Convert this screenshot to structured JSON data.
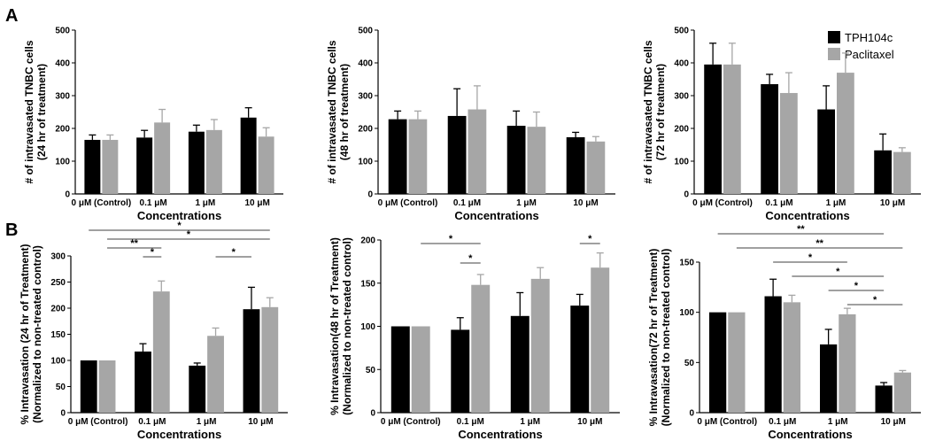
{
  "figure": {
    "panel_labels": [
      "A",
      "B"
    ],
    "legend": [
      {
        "name": "TPH104c",
        "color": "#000000"
      },
      {
        "name": "Paclitaxel",
        "color": "#a6a6a6"
      }
    ]
  },
  "chart_data": [
    {
      "type": "bar",
      "row": "A",
      "categories": [
        "0 μM (Control)",
        "0.1 μM",
        "1 μM",
        "10 μM"
      ],
      "xlabel": "Concentrations",
      "ylabel": [
        "# of intravasated TNBC cells",
        "(24 hr of treatment)"
      ],
      "ylim": [
        0,
        500
      ],
      "yticks": [
        0,
        100,
        200,
        300,
        400,
        500
      ],
      "series": [
        {
          "name": "TPH104c",
          "values": [
            165,
            172,
            190,
            233
          ],
          "errors": [
            15,
            22,
            20,
            30
          ]
        },
        {
          "name": "Paclitaxel",
          "values": [
            165,
            218,
            195,
            175
          ],
          "errors": [
            15,
            40,
            32,
            27
          ]
        }
      ],
      "significance": []
    },
    {
      "type": "bar",
      "row": "A",
      "categories": [
        "0 μM (Control)",
        "0.1 μM",
        "1 μM",
        "10 μM"
      ],
      "xlabel": "Concentrations",
      "ylabel": [
        "# of intravasated TNBC cells",
        "(48 hr of treatment)"
      ],
      "ylim": [
        0,
        500
      ],
      "yticks": [
        0,
        100,
        200,
        300,
        400,
        500
      ],
      "series": [
        {
          "name": "TPH104c",
          "values": [
            228,
            238,
            208,
            173
          ],
          "errors": [
            25,
            83,
            45,
            15
          ]
        },
        {
          "name": "Paclitaxel",
          "values": [
            228,
            258,
            205,
            160
          ],
          "errors": [
            25,
            72,
            45,
            15
          ]
        }
      ],
      "significance": []
    },
    {
      "type": "bar",
      "row": "A",
      "categories": [
        "0 μM (Control)",
        "0.1 μM",
        "1 μM",
        "10 μM"
      ],
      "xlabel": "Concentrations",
      "ylabel": [
        "# of intravasated TNBC cells",
        "(72 hr of treatment)"
      ],
      "ylim": [
        0,
        500
      ],
      "yticks": [
        0,
        100,
        200,
        300,
        400,
        500
      ],
      "series": [
        {
          "name": "TPH104c",
          "values": [
            395,
            335,
            258,
            133
          ],
          "errors": [
            65,
            30,
            72,
            50
          ]
        },
        {
          "name": "Paclitaxel",
          "values": [
            395,
            308,
            370,
            128
          ],
          "errors": [
            65,
            62,
            60,
            13
          ]
        }
      ],
      "significance": []
    },
    {
      "type": "bar",
      "row": "B",
      "categories": [
        "0 μM (Control)",
        "0.1 μM",
        "1 μM",
        "10 μM"
      ],
      "xlabel": "Concentrations",
      "ylabel": [
        "% Intravasation (24 hr of Treatment)",
        "(Normalized to non-treated control)"
      ],
      "ylim": [
        0,
        300
      ],
      "yticks": [
        0,
        50,
        100,
        150,
        200,
        250,
        300
      ],
      "series": [
        {
          "name": "TPH104c",
          "values": [
            100,
            117,
            90,
            198
          ],
          "errors": [
            0,
            15,
            5,
            42
          ]
        },
        {
          "name": "Paclitaxel",
          "values": [
            100,
            232,
            147,
            202
          ],
          "errors": [
            0,
            20,
            15,
            18
          ]
        }
      ],
      "significance": [
        {
          "label": "*",
          "from": "0.0",
          "to": "3.1",
          "level": 0
        },
        {
          "label": "*",
          "from": "0.1",
          "to": "3.1",
          "level": 1
        },
        {
          "label": "**",
          "from": "0.1",
          "to": "1.1",
          "level": 2
        },
        {
          "label": "*",
          "from": "1.0",
          "to": "1.1",
          "level": 3
        },
        {
          "label": "*",
          "from": "2.1",
          "to": "3.0",
          "level": 3
        }
      ]
    },
    {
      "type": "bar",
      "row": "B",
      "categories": [
        "0 μM (Control)",
        "0.1 μM",
        "1 μM",
        "10 μM"
      ],
      "xlabel": "Concentrations",
      "ylabel": [
        "% Intravasation(48 hr of Treatment)",
        "(Normalized to non-treated control)"
      ],
      "ylim": [
        0,
        200
      ],
      "yticks": [
        0,
        50,
        100,
        150,
        200
      ],
      "series": [
        {
          "name": "TPH104c",
          "values": [
            100,
            96,
            112,
            124
          ],
          "errors": [
            0,
            14,
            27,
            13
          ]
        },
        {
          "name": "Paclitaxel",
          "values": [
            100,
            148,
            155,
            168
          ],
          "errors": [
            0,
            12,
            13,
            17
          ]
        }
      ],
      "significance": [
        {
          "label": "*",
          "from": "0.1",
          "to": "1.1",
          "level": 0
        },
        {
          "label": "*",
          "from": "1.0",
          "to": "1.1",
          "level": 1
        },
        {
          "label": "*",
          "from": "3.0",
          "to": "3.1",
          "level": 0
        }
      ]
    },
    {
      "type": "bar",
      "row": "B",
      "categories": [
        "0 μM (Control)",
        "0.1 μM",
        "1 μM",
        "10 μM"
      ],
      "xlabel": "Concentrations",
      "ylabel": [
        "% Intravasation(72 hr of Treatment)",
        "(Normalized to non-treated control)"
      ],
      "ylim": [
        0,
        150
      ],
      "yticks": [
        0,
        50,
        100,
        150
      ],
      "series": [
        {
          "name": "TPH104c",
          "values": [
            100,
            116,
            68,
            27
          ],
          "errors": [
            0,
            17,
            15,
            3
          ]
        },
        {
          "name": "Paclitaxel",
          "values": [
            100,
            110,
            98,
            40
          ],
          "errors": [
            0,
            7,
            6,
            2
          ]
        }
      ],
      "significance": [
        {
          "label": "**",
          "from": "0.0",
          "to": "3.0",
          "level": 0
        },
        {
          "label": "**",
          "from": "0.1",
          "to": "3.1",
          "level": 1
        },
        {
          "label": "*",
          "from": "1.0",
          "to": "2.1",
          "level": 2
        },
        {
          "label": "*",
          "from": "1.1",
          "to": "3.0",
          "level": 3
        },
        {
          "label": "*",
          "from": "2.0",
          "to": "3.0",
          "level": 4
        },
        {
          "label": "*",
          "from": "2.1",
          "to": "3.1",
          "level": 5
        }
      ]
    }
  ]
}
